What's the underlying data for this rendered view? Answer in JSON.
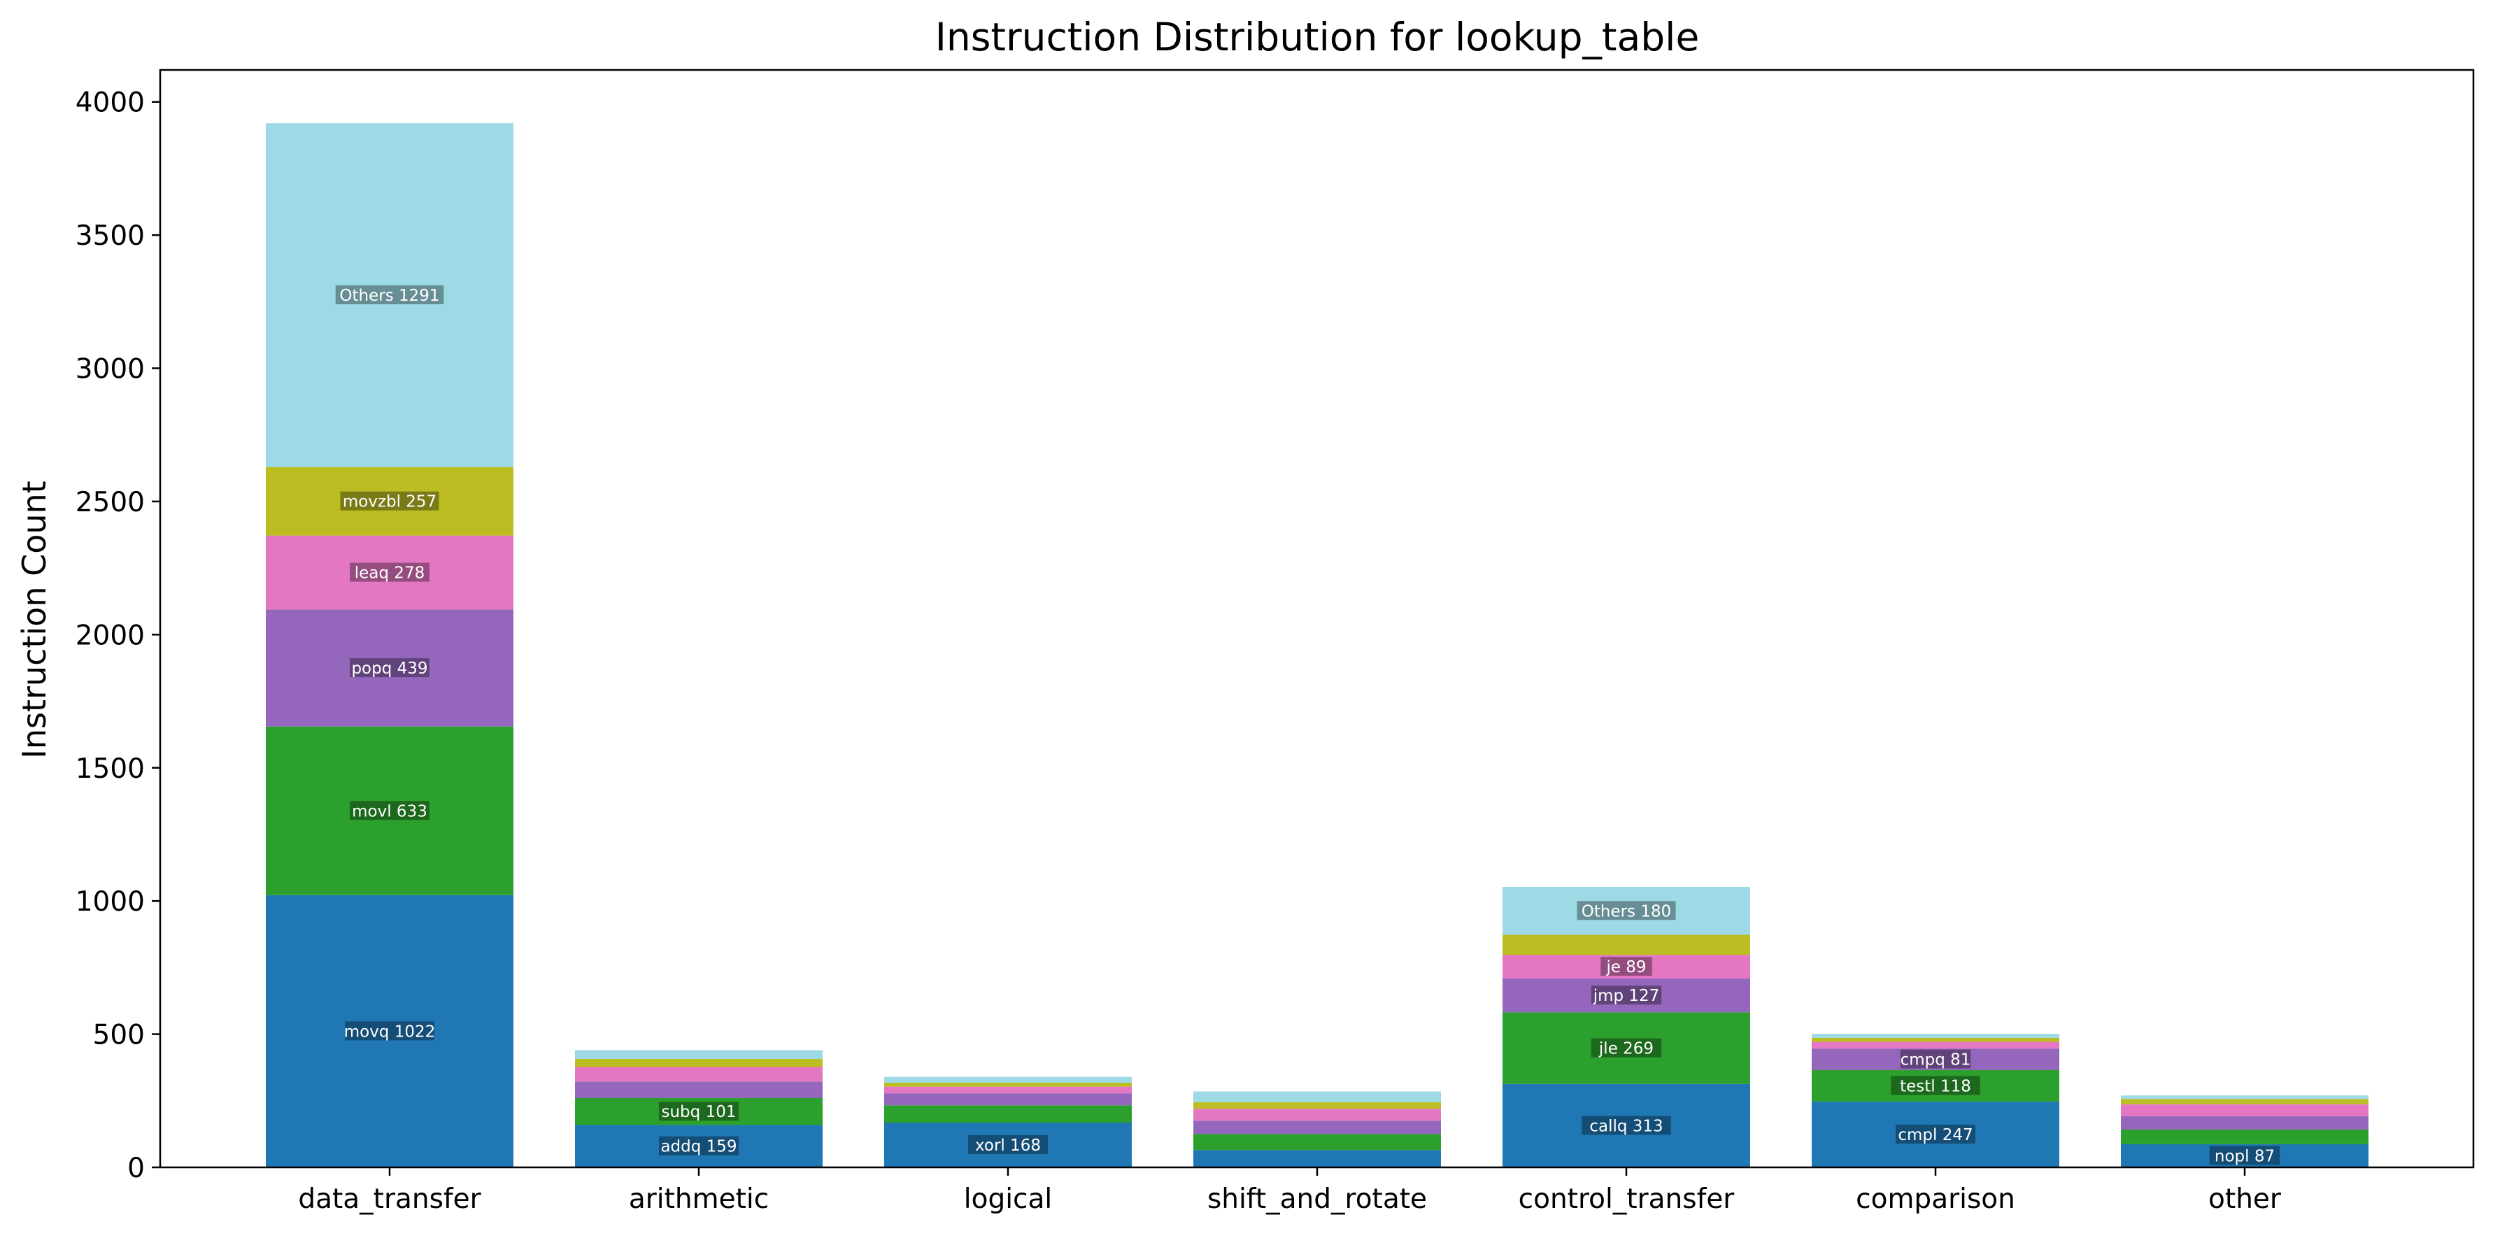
{
  "chart_data": {
    "type": "bar",
    "stacked": true,
    "title": "Instruction Distribution for lookup_table",
    "xlabel": "",
    "ylabel": "Instruction Count",
    "ylim": [
      0,
      4120
    ],
    "yticks": [
      0,
      500,
      1000,
      1500,
      2000,
      2500,
      3000,
      3500,
      4000
    ],
    "grid": false,
    "legend": "none",
    "colors": [
      "#1f77b4",
      "#2ca02c",
      "#9467bd",
      "#e377c2",
      "#bcbd22",
      "#9edae5"
    ],
    "categories": [
      "data_transfer",
      "arithmetic",
      "logical",
      "shift_and_rotate",
      "control_transfer",
      "comparison",
      "other"
    ],
    "stacks": [
      {
        "category": "data_transfer",
        "segments": [
          {
            "label": "movq 1022",
            "value": 1022
          },
          {
            "label": "movl 633",
            "value": 633
          },
          {
            "label": "popq 439",
            "value": 439
          },
          {
            "label": "leaq 278",
            "value": 278
          },
          {
            "label": "movzbl 257",
            "value": 257
          },
          {
            "label": "Others 1291",
            "value": 1291
          }
        ]
      },
      {
        "category": "arithmetic",
        "segments": [
          {
            "label": "addq 159",
            "value": 159
          },
          {
            "label": "subq 101",
            "value": 101
          },
          {
            "label": "",
            "value": 62
          },
          {
            "label": "",
            "value": 55
          },
          {
            "label": "",
            "value": 30
          },
          {
            "label": "",
            "value": 33
          }
        ]
      },
      {
        "category": "logical",
        "segments": [
          {
            "label": "xorl 168",
            "value": 168
          },
          {
            "label": "",
            "value": 65
          },
          {
            "label": "",
            "value": 45
          },
          {
            "label": "",
            "value": 25
          },
          {
            "label": "",
            "value": 15
          },
          {
            "label": "",
            "value": 22
          }
        ]
      },
      {
        "category": "shift_and_rotate",
        "segments": [
          {
            "label": "",
            "value": 65
          },
          {
            "label": "",
            "value": 60
          },
          {
            "label": "",
            "value": 50
          },
          {
            "label": "",
            "value": 45
          },
          {
            "label": "",
            "value": 25
          },
          {
            "label": "",
            "value": 40
          }
        ]
      },
      {
        "category": "control_transfer",
        "segments": [
          {
            "label": "callq 313",
            "value": 313
          },
          {
            "label": "jle 269",
            "value": 269
          },
          {
            "label": "jmp 127",
            "value": 127
          },
          {
            "label": "je 89",
            "value": 89
          },
          {
            "label": "",
            "value": 75
          },
          {
            "label": "Others 180",
            "value": 180
          }
        ]
      },
      {
        "category": "comparison",
        "segments": [
          {
            "label": "cmpl 247",
            "value": 247
          },
          {
            "label": "testl 118",
            "value": 118
          },
          {
            "label": "cmpq 81",
            "value": 81
          },
          {
            "label": "",
            "value": 25
          },
          {
            "label": "",
            "value": 15
          },
          {
            "label": "",
            "value": 15
          }
        ]
      },
      {
        "category": "other",
        "segments": [
          {
            "label": "nopl 87",
            "value": 87
          },
          {
            "label": "",
            "value": 55
          },
          {
            "label": "",
            "value": 50
          },
          {
            "label": "",
            "value": 45
          },
          {
            "label": "",
            "value": 20
          },
          {
            "label": "",
            "value": 13
          }
        ]
      }
    ]
  }
}
